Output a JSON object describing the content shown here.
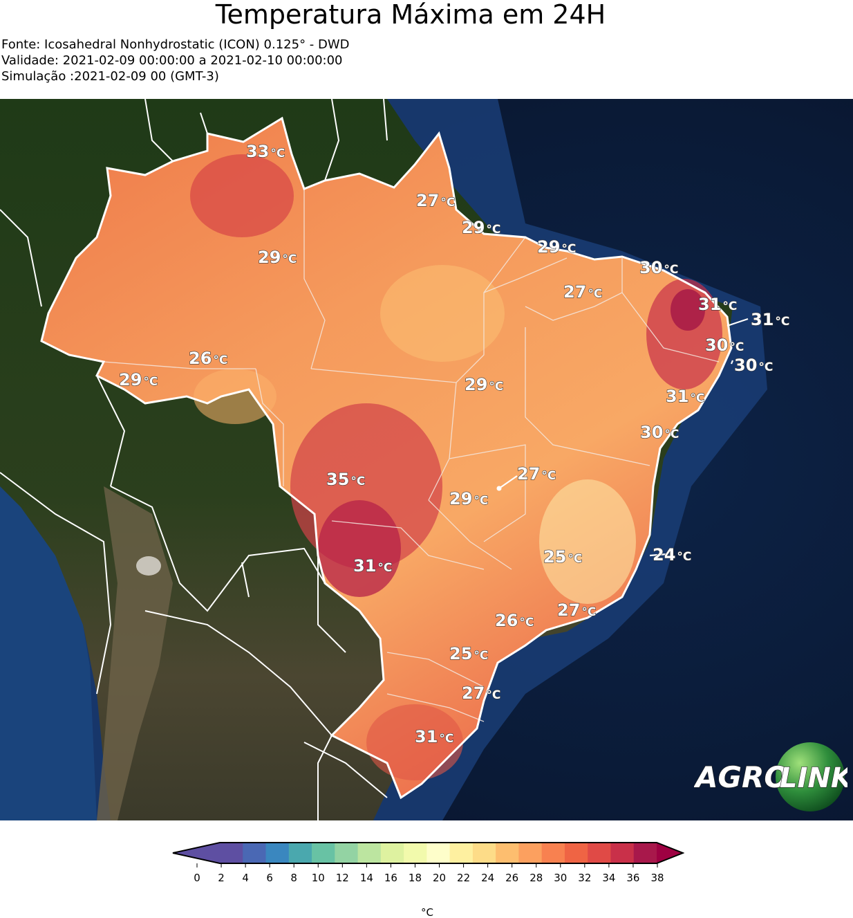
{
  "header": {
    "title": "Temperatura Máxima em 24H",
    "source": "Fonte: Icosahedral Nonhydrostatic (ICON) 0.125° - DWD",
    "validity": "Validade: 2021-02-09 00:00:00 a 2021-02-10 00:00:00",
    "simulation": "Simulação :2021-02-09 00 (GMT-3)"
  },
  "map": {
    "unit_symbol": "°C",
    "labels": [
      {
        "name": "roraima",
        "value": "33"
      },
      {
        "name": "amapa",
        "value": "27"
      },
      {
        "name": "para-nordeste",
        "value": "29"
      },
      {
        "name": "amazonas-north",
        "value": "29"
      },
      {
        "name": "maranhao-north",
        "value": "29"
      },
      {
        "name": "ceara",
        "value": "30"
      },
      {
        "name": "piaui",
        "value": "27"
      },
      {
        "name": "rio-grande-do-norte",
        "value": "31"
      },
      {
        "name": "natal-coast",
        "value": "31"
      },
      {
        "name": "paraiba",
        "value": "30"
      },
      {
        "name": "recife-coast",
        "value": "30"
      },
      {
        "name": "acre",
        "value": "29"
      },
      {
        "name": "rondonia-north",
        "value": "26"
      },
      {
        "name": "tocantins",
        "value": "29"
      },
      {
        "name": "alagoas-sergipe",
        "value": "31"
      },
      {
        "name": "bahia-coast",
        "value": "30"
      },
      {
        "name": "mato-grosso",
        "value": "35"
      },
      {
        "name": "brasilia",
        "value": "27"
      },
      {
        "name": "goias",
        "value": "29"
      },
      {
        "name": "minas-gerais",
        "value": "25"
      },
      {
        "name": "vitoria-coast",
        "value": "24"
      },
      {
        "name": "mato-grosso-do-sul",
        "value": "31"
      },
      {
        "name": "sao-paulo",
        "value": "26"
      },
      {
        "name": "rio-de-janeiro",
        "value": "27"
      },
      {
        "name": "parana",
        "value": "25"
      },
      {
        "name": "santa-catarina",
        "value": "27"
      },
      {
        "name": "rio-grande-do-sul",
        "value": "31"
      }
    ]
  },
  "logo": {
    "left_text": "AGRO",
    "right_text": "LINK"
  },
  "colorbar": {
    "unit": "°C",
    "min": 0,
    "max": 38,
    "ticks": [
      "0",
      "2",
      "4",
      "6",
      "8",
      "10",
      "12",
      "14",
      "16",
      "18",
      "20",
      "22",
      "24",
      "26",
      "28",
      "30",
      "32",
      "34",
      "36",
      "38"
    ],
    "colors": [
      "#5e4fa2",
      "#4a68b4",
      "#3a87bf",
      "#4aa8ae",
      "#68c2a4",
      "#93d3a3",
      "#bce5a0",
      "#def2a0",
      "#f2faac",
      "#fefeca",
      "#fef0a0",
      "#fddc88",
      "#fdbe6f",
      "#fca05f",
      "#f88150",
      "#ef6444",
      "#e04a46",
      "#c93049",
      "#a8184b"
    ],
    "under_color": "#5e4fa2",
    "over_color": "#9e0142"
  }
}
